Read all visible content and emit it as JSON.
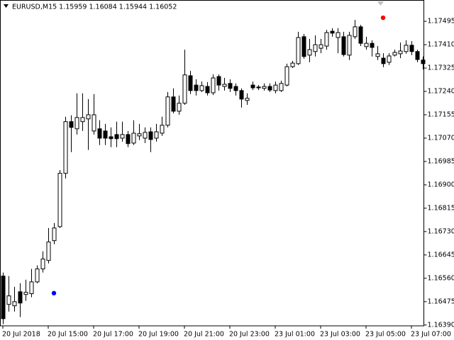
{
  "chart_data": {
    "type": "candlestick",
    "title": "EURUSD,M15 1.15959 1.16084 1.15944 1.16052",
    "categories": [
      "20 Jul 2018",
      null,
      null,
      null,
      null,
      null,
      null,
      null,
      "20 Jul 15:00",
      null,
      null,
      null,
      null,
      null,
      null,
      null,
      "20 Jul 17:00",
      null,
      null,
      null,
      null,
      null,
      null,
      null,
      "20 Jul 19:00",
      null,
      null,
      null,
      null,
      null,
      null,
      null,
      "20 Jul 21:00",
      null,
      null,
      null,
      null,
      null,
      null,
      null,
      "20 Jul 23:00",
      null,
      null,
      null,
      null,
      null,
      null,
      null,
      "23 Jul 01:00",
      null,
      null,
      null,
      null,
      null,
      null,
      null,
      "23 Jul 03:00",
      null,
      null,
      null,
      null,
      null,
      null,
      null,
      "23 Jul 05:00",
      null,
      null,
      null,
      null,
      null,
      null,
      null,
      "23 Jul 07:00",
      null,
      null
    ],
    "open": [
      1.16568,
      1.16465,
      1.1646,
      1.16511,
      1.16501,
      1.16504,
      1.16547,
      1.16594,
      1.16625,
      1.16697,
      1.16748,
      1.16942,
      1.1713,
      1.17104,
      1.1713,
      1.1714,
      1.17096,
      1.17104,
      1.17096,
      1.17075,
      1.17083,
      1.1707,
      1.17083,
      1.17052,
      1.17078,
      1.1707,
      1.17093,
      1.1707,
      1.17088,
      1.17117,
      1.1722,
      1.17168,
      1.17197,
      1.17297,
      1.17263,
      1.17243,
      1.17258,
      1.17235,
      1.17294,
      1.17258,
      1.17269,
      1.17258,
      1.17243,
      1.17207,
      1.17263,
      1.17256,
      1.17251,
      1.17258,
      1.17243,
      1.17243,
      1.17263,
      1.1733,
      1.17341,
      1.17439,
      1.17372,
      1.17385,
      1.17397,
      1.17405,
      1.17459,
      1.17436,
      1.17439,
      1.17372,
      1.17439,
      1.17475,
      1.17403,
      1.17415,
      1.17367,
      1.17361,
      1.17346,
      1.17372,
      1.17377,
      1.17385,
      1.17408,
      1.17385,
      1.17354
    ],
    "high": [
      1.16581,
      1.16568,
      1.16529,
      1.16542,
      1.16555,
      1.16594,
      1.16607,
      1.16658,
      1.16743,
      1.16761,
      1.16954,
      1.17148,
      1.17153,
      1.17233,
      1.17233,
      1.17212,
      1.1723,
      1.17135,
      1.17122,
      1.17109,
      1.1713,
      1.1713,
      1.17096,
      1.17135,
      1.17122,
      1.17109,
      1.17109,
      1.17122,
      1.17148,
      1.17238,
      1.17251,
      1.17225,
      1.17392,
      1.17315,
      1.17284,
      1.17276,
      1.17274,
      1.17302,
      1.17302,
      1.17289,
      1.17284,
      1.17269,
      1.17251,
      1.17233,
      1.17276,
      1.17263,
      1.17269,
      1.17269,
      1.17276,
      1.17279,
      1.17341,
      1.17351,
      1.17457,
      1.17449,
      1.17431,
      1.17444,
      1.17431,
      1.17464,
      1.1747,
      1.1747,
      1.17457,
      1.17457,
      1.175,
      1.17482,
      1.17439,
      1.17426,
      1.17405,
      1.17379,
      1.17379,
      1.17392,
      1.17418,
      1.17426,
      1.17423,
      1.17392,
      1.17367
    ],
    "low": [
      1.16393,
      1.16439,
      1.16439,
      1.16419,
      1.16478,
      1.16491,
      1.16542,
      1.16581,
      1.16614,
      1.16684,
      1.16743,
      1.16923,
      1.17019,
      1.17083,
      1.17096,
      1.17027,
      1.17083,
      1.17045,
      1.17045,
      1.17037,
      1.17037,
      1.17057,
      1.17037,
      1.17045,
      1.17063,
      1.17052,
      1.17019,
      1.17057,
      1.17078,
      1.17109,
      1.1716,
      1.17155,
      1.17191,
      1.1723,
      1.17225,
      1.17238,
      1.17225,
      1.17227,
      1.17243,
      1.17243,
      1.17238,
      1.17225,
      1.17181,
      1.17191,
      1.17245,
      1.17245,
      1.17243,
      1.17238,
      1.17233,
      1.17238,
      1.17258,
      1.17325,
      1.17336,
      1.17359,
      1.17346,
      1.17367,
      1.17379,
      1.17392,
      1.17439,
      1.17379,
      1.17367,
      1.17354,
      1.17431,
      1.17405,
      1.17392,
      1.17367,
      1.17354,
      1.17328,
      1.17336,
      1.17367,
      1.17361,
      1.17377,
      1.17372,
      1.17346,
      1.1732
    ],
    "close": [
      1.16413,
      1.16496,
      1.16475,
      1.1647,
      1.16509,
      1.16547,
      1.16594,
      1.1663,
      1.16692,
      1.16743,
      1.16942,
      1.1713,
      1.17109,
      1.17145,
      1.17145,
      1.17155,
      1.17155,
      1.1707,
      1.1707,
      1.17068,
      1.17068,
      1.17083,
      1.1705,
      1.17088,
      1.17086,
      1.17091,
      1.17065,
      1.17093,
      1.17117,
      1.1722,
      1.17168,
      1.17197,
      1.173,
      1.17243,
      1.17243,
      1.17261,
      1.17235,
      1.17289,
      1.17263,
      1.17266,
      1.17251,
      1.17243,
      1.17212,
      1.17215,
      1.17253,
      1.17253,
      1.17258,
      1.17245,
      1.17263,
      1.17269,
      1.1733,
      1.17343,
      1.17436,
      1.17367,
      1.17392,
      1.1741,
      1.1741,
      1.17454,
      1.17452,
      1.17454,
      1.17374,
      1.17444,
      1.17475,
      1.17415,
      1.17415,
      1.174,
      1.17377,
      1.17341,
      1.17369,
      1.17382,
      1.17387,
      1.17408,
      1.17385,
      1.17356,
      1.17341
    ],
    "up_color": "#ffffff",
    "down_color": "#000000",
    "line_color": "#000000",
    "markers": [
      {
        "index": 9,
        "value": 1.16506,
        "color": "#0000ff"
      },
      {
        "index": 67,
        "value": 1.17508,
        "color": "#ff0000"
      }
    ],
    "ylim": [
      1.16387,
      1.1757
    ],
    "yticks": [
      1.17495,
      {
        "value": 1.1741,
        "label": "1.17410"
      },
      1.17325,
      {
        "value": 1.1724,
        "label": "1.17240"
      },
      1.17155,
      {
        "value": 1.1707,
        "label": "1.17070"
      },
      1.16985,
      {
        "value": 1.169,
        "label": "1.16900"
      },
      1.16815,
      {
        "value": 1.1673,
        "label": "1.16730"
      },
      1.16645,
      {
        "value": 1.1656,
        "label": "1.16560"
      },
      1.16475,
      {
        "value": 1.1639,
        "label": "1.16390"
      }
    ],
    "grid": false
  }
}
